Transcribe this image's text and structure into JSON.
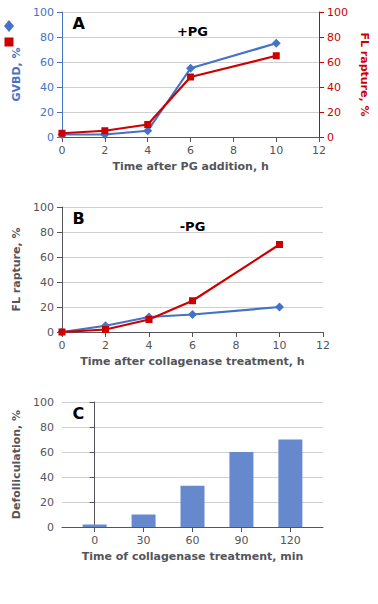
{
  "chart_data": [
    {
      "type": "line",
      "title": "A",
      "annotation": "+PG",
      "xlabel": "Time after PG addition, h",
      "ylabel": "GVBD, %",
      "y2label": "FL rapture, %",
      "x": [
        0,
        2,
        4,
        6,
        10
      ],
      "series": [
        {
          "color": "#4472C4",
          "marker": "diamond",
          "values": [
            2,
            2,
            5,
            55,
            75
          ]
        },
        {
          "color": "#CC0000",
          "marker": "square",
          "values": [
            3,
            5,
            10,
            48,
            65
          ],
          "axis": "y2"
        }
      ],
      "xlim": [
        0,
        12
      ],
      "xticks": [
        0,
        2,
        4,
        6,
        8,
        10,
        12
      ],
      "ylim": [
        0,
        100
      ],
      "yticks": [
        0,
        20,
        40,
        60,
        80,
        100
      ],
      "y2lim": [
        0,
        100
      ],
      "y2ticks": [
        0,
        20,
        40,
        60,
        80,
        100
      ],
      "grid": true
    },
    {
      "type": "line",
      "title": "B",
      "annotation": "-PG",
      "xlabel": "Time after collagenase treatment, h",
      "ylabel": "FL rapture, %",
      "x": [
        0,
        2,
        4,
        6,
        10
      ],
      "series": [
        {
          "color": "#4472C4",
          "marker": "diamond",
          "values": [
            0,
            5,
            12,
            14,
            20
          ]
        },
        {
          "color": "#CC0000",
          "marker": "square",
          "values": [
            0,
            2,
            10,
            25,
            70
          ]
        }
      ],
      "xlim": [
        0,
        12
      ],
      "xticks": [
        0,
        2,
        4,
        6,
        8,
        10,
        12
      ],
      "ylim": [
        0,
        100
      ],
      "yticks": [
        0,
        20,
        40,
        60,
        80,
        100
      ],
      "grid": true
    },
    {
      "type": "bar",
      "title": "C",
      "xlabel": "Time of collagenase treatment, min",
      "ylabel": "Defolliculation, %",
      "x": [
        0,
        30,
        60,
        90,
        120
      ],
      "values": [
        2,
        10,
        33,
        60,
        70
      ],
      "color": "#6688cc",
      "xlim": [
        -20,
        140
      ],
      "xticks": [
        0,
        30,
        60,
        90,
        120
      ],
      "ylim": [
        0,
        100
      ],
      "yticks": [
        0,
        20,
        40,
        60,
        80,
        100
      ],
      "grid": true
    }
  ]
}
